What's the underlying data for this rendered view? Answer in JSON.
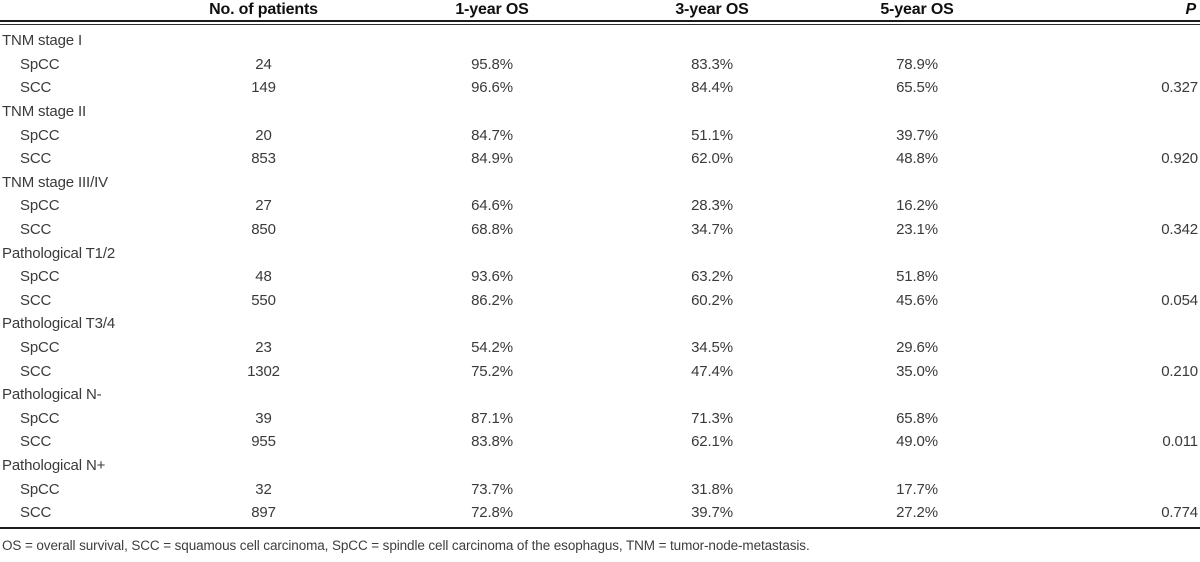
{
  "table": {
    "headers": {
      "label": "",
      "patients": "No. of patients",
      "os1": "1-year OS",
      "os3": "3-year OS",
      "os5": "5-year OS",
      "p": "P"
    },
    "groups": [
      {
        "label": "TNM stage I",
        "rows": [
          {
            "label": "SpCC",
            "n": "24",
            "os1": "95.8%",
            "os3": "83.3%",
            "os5": "78.9%",
            "p": ""
          },
          {
            "label": "SCC",
            "n": "149",
            "os1": "96.6%",
            "os3": "84.4%",
            "os5": "65.5%",
            "p": "0.327"
          }
        ]
      },
      {
        "label": "TNM stage II",
        "rows": [
          {
            "label": "SpCC",
            "n": "20",
            "os1": "84.7%",
            "os3": "51.1%",
            "os5": "39.7%",
            "p": ""
          },
          {
            "label": "SCC",
            "n": "853",
            "os1": "84.9%",
            "os3": "62.0%",
            "os5": "48.8%",
            "p": "0.920"
          }
        ]
      },
      {
        "label": "TNM stage III/IV",
        "rows": [
          {
            "label": "SpCC",
            "n": "27",
            "os1": "64.6%",
            "os3": "28.3%",
            "os5": "16.2%",
            "p": ""
          },
          {
            "label": "SCC",
            "n": "850",
            "os1": "68.8%",
            "os3": "34.7%",
            "os5": "23.1%",
            "p": "0.342"
          }
        ]
      },
      {
        "label": "Pathological T1/2",
        "rows": [
          {
            "label": "SpCC",
            "n": "48",
            "os1": "93.6%",
            "os3": "63.2%",
            "os5": "51.8%",
            "p": ""
          },
          {
            "label": "SCC",
            "n": "550",
            "os1": "86.2%",
            "os3": "60.2%",
            "os5": "45.6%",
            "p": "0.054"
          }
        ]
      },
      {
        "label": "Pathological T3/4",
        "rows": [
          {
            "label": "SpCC",
            "n": "23",
            "os1": "54.2%",
            "os3": "34.5%",
            "os5": "29.6%",
            "p": ""
          },
          {
            "label": "SCC",
            "n": "1302",
            "os1": "75.2%",
            "os3": "47.4%",
            "os5": "35.0%",
            "p": "0.210"
          }
        ]
      },
      {
        "label": "Pathological N-",
        "rows": [
          {
            "label": "SpCC",
            "n": "39",
            "os1": "87.1%",
            "os3": "71.3%",
            "os5": "65.8%",
            "p": ""
          },
          {
            "label": "SCC",
            "n": "955",
            "os1": "83.8%",
            "os3": "62.1%",
            "os5": "49.0%",
            "p": "0.011"
          }
        ]
      },
      {
        "label": "Pathological N+",
        "rows": [
          {
            "label": "SpCC",
            "n": "32",
            "os1": "73.7%",
            "os3": "31.8%",
            "os5": "17.7%",
            "p": ""
          },
          {
            "label": "SCC",
            "n": "897",
            "os1": "72.8%",
            "os3": "39.7%",
            "os5": "27.2%",
            "p": "0.774"
          }
        ]
      }
    ],
    "footnote": "OS = overall survival, SCC = squamous cell carcinoma, SpCC = spindle cell carcinoma of the esophagus, TNM = tumor-node-metastasis."
  }
}
